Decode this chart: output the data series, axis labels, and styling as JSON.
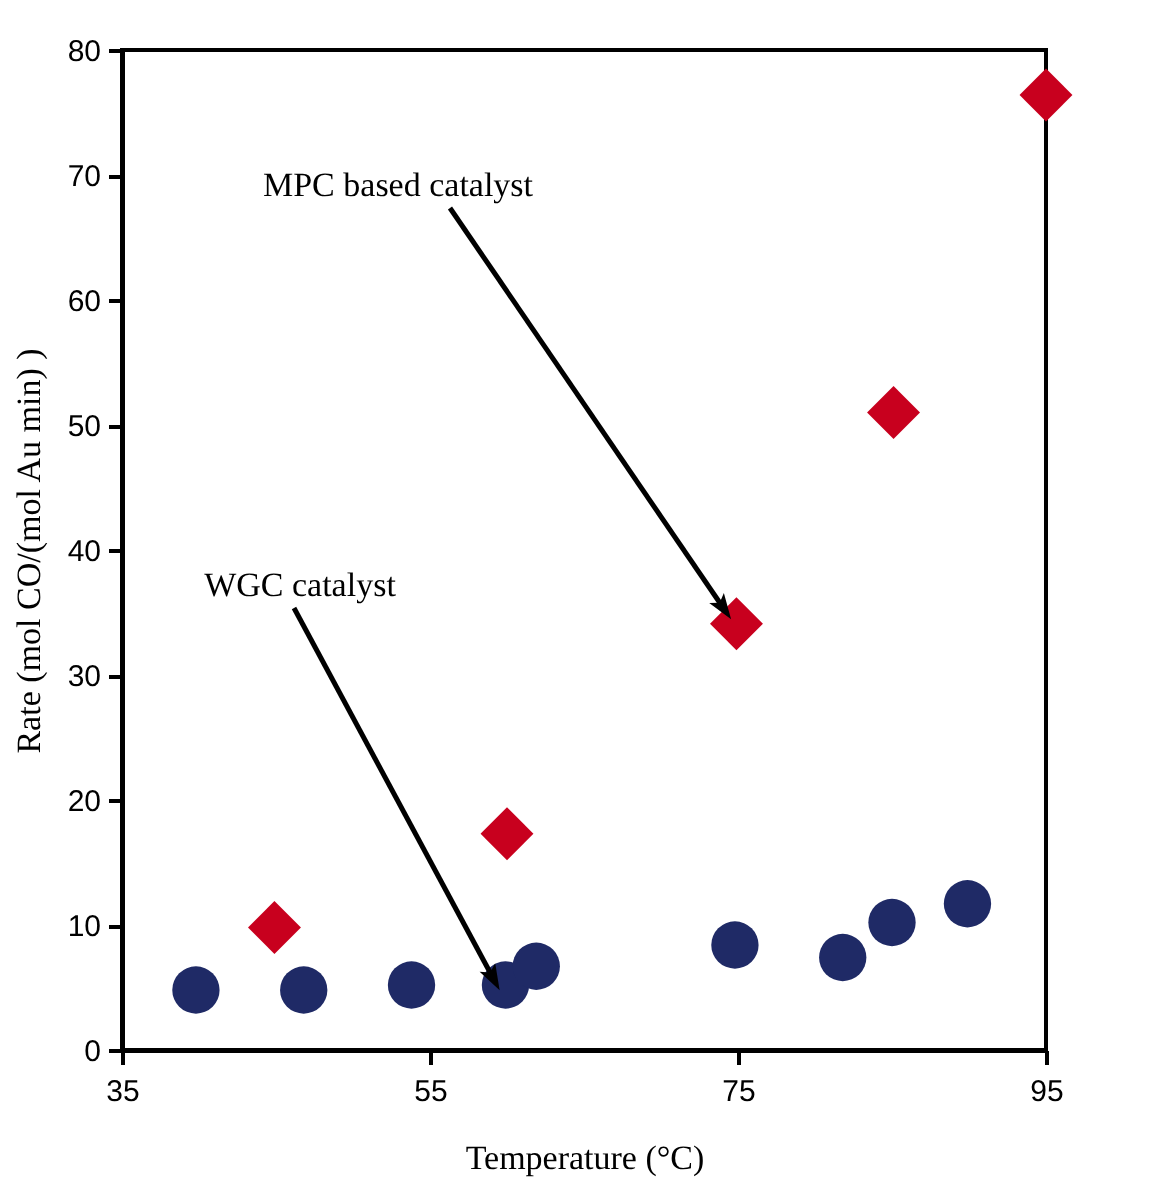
{
  "chart_data": {
    "type": "scatter",
    "xlabel": "Temperature (°C)",
    "ylabel": "Rate (mol CO/(mol Au min) )",
    "xlim": [
      35,
      95
    ],
    "xticks": [
      35,
      55,
      75,
      95
    ],
    "ylim": [
      0,
      80
    ],
    "yticks": [
      0,
      10,
      20,
      30,
      40,
      50,
      60,
      70,
      80
    ],
    "grid": false,
    "series": [
      {
        "color": "#c8001e",
        "marker": "diamond",
        "x": [
          44.9,
          60.0,
          74.9,
          85.1,
          95.0
        ],
        "values": [
          9.8,
          17.3,
          34.1,
          51.0,
          76.4
        ]
      },
      {
        "color": "#1f2a66",
        "marker": "circle",
        "x": [
          39.8,
          46.8,
          53.8,
          59.9,
          61.9,
          74.8,
          81.8,
          85.0,
          89.9
        ],
        "values": [
          4.8,
          4.8,
          5.2,
          5.2,
          6.7,
          8.4,
          7.4,
          10.2,
          11.7
        ]
      }
    ],
    "annotations": [
      "MPC based catalyst",
      "WGC catalyst"
    ]
  }
}
